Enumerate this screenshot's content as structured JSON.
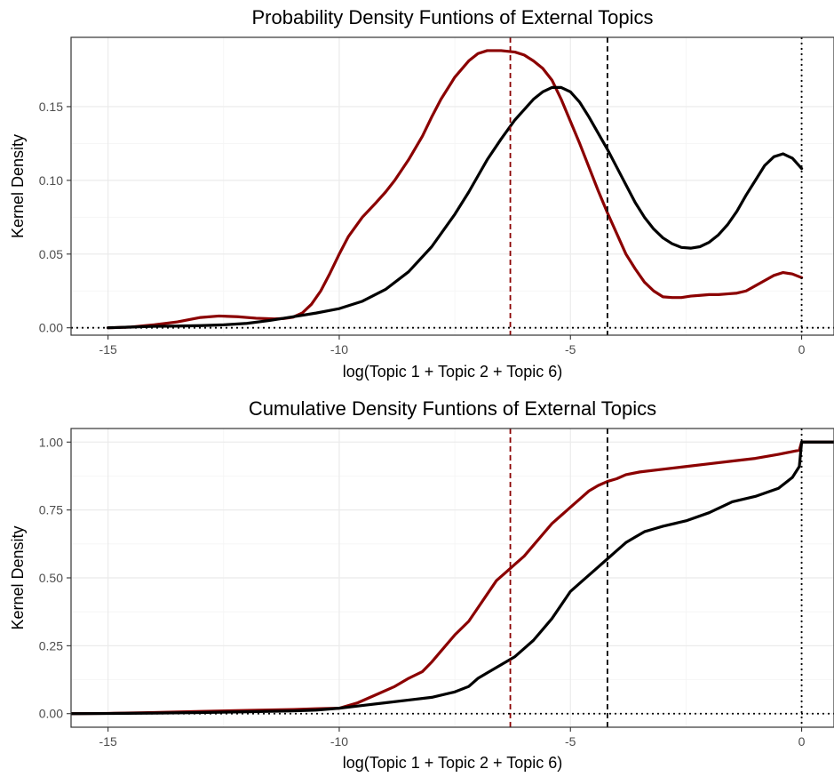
{
  "chart_data": [
    {
      "type": "line",
      "title": "Probability Density Funtions of External Topics",
      "xlabel": "log(Topic 1 + Topic 2 + Topic 6)",
      "ylabel": "Kernel Density",
      "xlim": [
        -15.8,
        0.7
      ],
      "ylim": [
        -0.005,
        0.197
      ],
      "xticks": [
        -15,
        -10,
        -5,
        0
      ],
      "xtick_labels": [
        "-15",
        "-10",
        "-5",
        "0"
      ],
      "yticks": [
        0.0,
        0.05,
        0.1,
        0.15
      ],
      "ytick_labels": [
        "0.00",
        "0.05",
        "0.10",
        "0.15"
      ],
      "grid": true,
      "legend": "none",
      "series": [
        {
          "color": "#8b0000",
          "x": [
            -15,
            -14.5,
            -14,
            -13.5,
            -13,
            -12.6,
            -12.2,
            -11.8,
            -11.4,
            -11.2,
            -11,
            -10.8,
            -10.6,
            -10.4,
            -10.2,
            -10,
            -9.8,
            -9.5,
            -9.2,
            -9,
            -8.8,
            -8.5,
            -8.2,
            -8,
            -7.8,
            -7.5,
            -7.2,
            -7,
            -6.8,
            -6.5,
            -6.2,
            -6,
            -5.8,
            -5.6,
            -5.4,
            -5.2,
            -5,
            -4.8,
            -4.6,
            -4.4,
            -4.2,
            -4,
            -3.8,
            -3.6,
            -3.4,
            -3.2,
            -3,
            -2.8,
            -2.6,
            -2.4,
            -2.2,
            -2,
            -1.8,
            -1.6,
            -1.4,
            -1.2,
            -1,
            -0.8,
            -0.6,
            -0.4,
            -0.2,
            0
          ],
          "y": [
            0.0,
            0.0005,
            0.002,
            0.004,
            0.007,
            0.008,
            0.0075,
            0.0065,
            0.006,
            0.0063,
            0.0072,
            0.01,
            0.016,
            0.025,
            0.037,
            0.05,
            0.062,
            0.075,
            0.085,
            0.092,
            0.1,
            0.114,
            0.13,
            0.143,
            0.155,
            0.17,
            0.181,
            0.186,
            0.188,
            0.188,
            0.187,
            0.185,
            0.181,
            0.176,
            0.168,
            0.155,
            0.14,
            0.125,
            0.109,
            0.093,
            0.078,
            0.064,
            0.05,
            0.04,
            0.031,
            0.025,
            0.021,
            0.0205,
            0.0205,
            0.0215,
            0.022,
            0.0225,
            0.0225,
            0.023,
            0.0235,
            0.025,
            0.0285,
            0.032,
            0.0355,
            0.0375,
            0.0365,
            0.034
          ]
        },
        {
          "color": "#000000",
          "x": [
            -15,
            -14.5,
            -14,
            -13.5,
            -13,
            -12.5,
            -12,
            -11.5,
            -11,
            -10.5,
            -10,
            -9.5,
            -9,
            -8.5,
            -8,
            -7.5,
            -7.2,
            -7,
            -6.8,
            -6.5,
            -6.2,
            -6,
            -5.8,
            -5.6,
            -5.4,
            -5.2,
            -5,
            -4.8,
            -4.6,
            -4.4,
            -4.2,
            -4,
            -3.8,
            -3.6,
            -3.4,
            -3.2,
            -3,
            -2.8,
            -2.6,
            -2.4,
            -2.2,
            -2,
            -1.8,
            -1.6,
            -1.4,
            -1.2,
            -1,
            -0.8,
            -0.6,
            -0.4,
            -0.2,
            0
          ],
          "y": [
            0.0,
            0.0005,
            0.001,
            0.0012,
            0.0015,
            0.002,
            0.003,
            0.005,
            0.0075,
            0.01,
            0.013,
            0.018,
            0.026,
            0.038,
            0.055,
            0.077,
            0.092,
            0.103,
            0.114,
            0.128,
            0.141,
            0.148,
            0.155,
            0.16,
            0.163,
            0.163,
            0.16,
            0.153,
            0.143,
            0.132,
            0.121,
            0.109,
            0.097,
            0.085,
            0.075,
            0.067,
            0.061,
            0.057,
            0.0545,
            0.054,
            0.055,
            0.058,
            0.063,
            0.07,
            0.079,
            0.09,
            0.1,
            0.11,
            0.116,
            0.118,
            0.115,
            0.108
          ]
        }
      ],
      "vlines": [
        {
          "x": -6.3,
          "color": "#8b0000",
          "style": "dashed"
        },
        {
          "x": -4.2,
          "color": "#000000",
          "style": "dashed"
        },
        {
          "x": 0,
          "color": "#000000",
          "style": "dotted"
        }
      ],
      "hlines": [
        {
          "y": 0,
          "color": "#000000",
          "style": "dotted"
        }
      ]
    },
    {
      "type": "line",
      "title": "Cumulative Density Funtions of External Topics",
      "xlabel": "log(Topic 1 + Topic 2 + Topic 6)",
      "ylabel": "Kernel Density",
      "xlim": [
        -15.8,
        0.7
      ],
      "ylim": [
        -0.05,
        1.05
      ],
      "xticks": [
        -15,
        -10,
        -5,
        0
      ],
      "xtick_labels": [
        "-15",
        "-10",
        "-5",
        "0"
      ],
      "yticks": [
        0.0,
        0.25,
        0.5,
        0.75,
        1.0
      ],
      "ytick_labels": [
        "0.00",
        "0.25",
        "0.50",
        "0.75",
        "1.00"
      ],
      "grid": true,
      "legend": "none",
      "series": [
        {
          "color": "#8b0000",
          "x": [
            -15.8,
            -15,
            -14,
            -13,
            -12,
            -11,
            -10.5,
            -10,
            -9.6,
            -9.2,
            -8.8,
            -8.5,
            -8.2,
            -8,
            -7.8,
            -7.5,
            -7.2,
            -7,
            -6.8,
            -6.6,
            -6.4,
            -6.2,
            -6,
            -5.8,
            -5.6,
            -5.4,
            -5.2,
            -5,
            -4.8,
            -4.6,
            -4.4,
            -4.2,
            -4,
            -3.8,
            -3.5,
            -3,
            -2.5,
            -2,
            -1.5,
            -1,
            -0.5,
            -0.2,
            -0.05,
            0,
            0.7
          ],
          "y": [
            0.0,
            0.001,
            0.004,
            0.008,
            0.012,
            0.015,
            0.018,
            0.02,
            0.04,
            0.07,
            0.1,
            0.13,
            0.155,
            0.19,
            0.23,
            0.29,
            0.34,
            0.39,
            0.44,
            0.49,
            0.52,
            0.55,
            0.58,
            0.62,
            0.66,
            0.7,
            0.73,
            0.76,
            0.79,
            0.82,
            0.84,
            0.855,
            0.865,
            0.88,
            0.89,
            0.9,
            0.91,
            0.92,
            0.93,
            0.94,
            0.955,
            0.965,
            0.97,
            1.0,
            1.0
          ]
        },
        {
          "color": "#000000",
          "x": [
            -15.8,
            -15,
            -14,
            -13,
            -12,
            -11,
            -10.5,
            -10,
            -9.5,
            -9,
            -8.5,
            -8,
            -7.5,
            -7.2,
            -7,
            -6.8,
            -6.5,
            -6.2,
            -6,
            -5.8,
            -5.6,
            -5.4,
            -5.2,
            -5,
            -4.8,
            -4.6,
            -4.4,
            -4.2,
            -4,
            -3.8,
            -3.6,
            -3.4,
            -3.2,
            -3,
            -2.5,
            -2,
            -1.5,
            -1,
            -0.5,
            -0.2,
            -0.05,
            0,
            0.7
          ],
          "y": [
            0.0,
            0.0005,
            0.002,
            0.004,
            0.007,
            0.01,
            0.013,
            0.02,
            0.03,
            0.04,
            0.05,
            0.06,
            0.08,
            0.1,
            0.13,
            0.15,
            0.18,
            0.21,
            0.24,
            0.27,
            0.31,
            0.35,
            0.4,
            0.45,
            0.48,
            0.51,
            0.54,
            0.57,
            0.6,
            0.63,
            0.65,
            0.67,
            0.68,
            0.69,
            0.71,
            0.74,
            0.78,
            0.8,
            0.83,
            0.87,
            0.91,
            1.0,
            1.0
          ]
        }
      ],
      "vlines": [
        {
          "x": -6.3,
          "color": "#8b0000",
          "style": "dashed"
        },
        {
          "x": -4.2,
          "color": "#000000",
          "style": "dashed"
        },
        {
          "x": 0,
          "color": "#000000",
          "style": "dotted"
        }
      ],
      "hlines": [
        {
          "y": 0,
          "color": "#000000",
          "style": "dotted"
        }
      ]
    }
  ]
}
